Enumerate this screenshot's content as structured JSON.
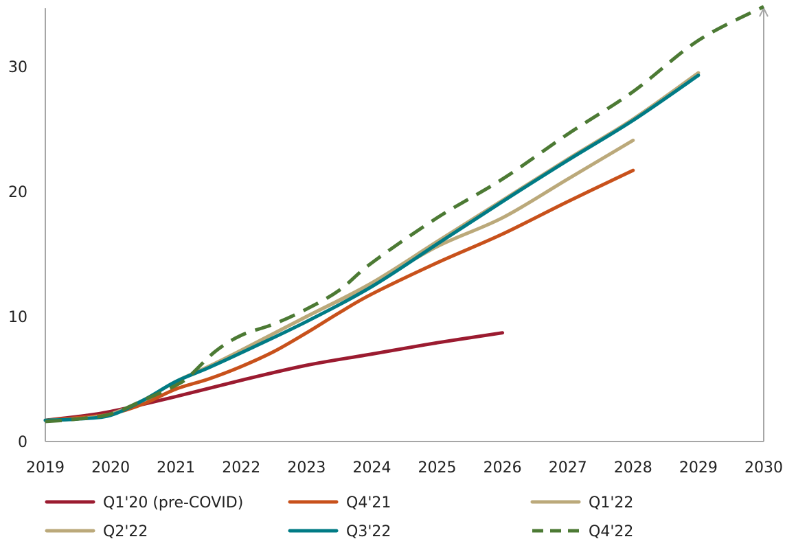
{
  "chart_data": {
    "type": "line",
    "title": "",
    "xlabel": "",
    "ylabel": "",
    "xlim": [
      2019,
      2030
    ],
    "ylim": [
      0,
      34
    ],
    "x_ticks": [
      "2019",
      "2020",
      "2021",
      "2022",
      "2023",
      "2024",
      "2025",
      "2026",
      "2027",
      "2028",
      "2029",
      "2030"
    ],
    "y_ticks": [
      "0",
      "10",
      "20",
      "30"
    ],
    "grid": false,
    "legend_position": "bottom",
    "series": [
      {
        "name": "Q1'20 (pre-COVID)",
        "color": "#9b1b30",
        "dash": false,
        "points": [
          [
            2019,
            1.7
          ],
          [
            2019.5,
            2.0
          ],
          [
            2020,
            2.4
          ],
          [
            2021,
            3.6
          ],
          [
            2022,
            4.9
          ],
          [
            2023,
            6.1
          ],
          [
            2024,
            7.0
          ],
          [
            2025,
            7.9
          ],
          [
            2026,
            8.7
          ]
        ]
      },
      {
        "name": "Q4'21",
        "color": "#c8511b",
        "dash": false,
        "points": [
          [
            2019,
            1.7
          ],
          [
            2019.5,
            1.9
          ],
          [
            2020,
            2.2
          ],
          [
            2020.5,
            3.0
          ],
          [
            2021,
            4.2
          ],
          [
            2021.5,
            5.0
          ],
          [
            2022,
            6.0
          ],
          [
            2022.5,
            7.2
          ],
          [
            2023,
            8.7
          ],
          [
            2023.5,
            10.3
          ],
          [
            2024,
            11.8
          ],
          [
            2025,
            14.3
          ],
          [
            2026,
            16.6
          ],
          [
            2027,
            19.2
          ],
          [
            2028,
            21.7
          ]
        ]
      },
      {
        "name": "Q1'22",
        "color": "#bba97a",
        "dash": false,
        "points": [
          [
            2019,
            1.7
          ],
          [
            2019.5,
            1.8
          ],
          [
            2020,
            2.2
          ],
          [
            2020.5,
            3.3
          ],
          [
            2021,
            4.8
          ],
          [
            2021.5,
            6.0
          ],
          [
            2022,
            7.3
          ],
          [
            2023,
            10.0
          ],
          [
            2024,
            12.7
          ],
          [
            2025,
            16.0
          ],
          [
            2026,
            19.3
          ],
          [
            2027,
            22.6
          ],
          [
            2028,
            25.8
          ],
          [
            2029,
            29.5
          ]
        ]
      },
      {
        "name": "Q2'22",
        "color": "#bba97a",
        "dash": false,
        "points": [
          [
            2019,
            1.7
          ],
          [
            2019.5,
            1.8
          ],
          [
            2020,
            2.2
          ],
          [
            2020.5,
            3.3
          ],
          [
            2021,
            4.8
          ],
          [
            2021.5,
            6.0
          ],
          [
            2022,
            7.3
          ],
          [
            2023,
            10.0
          ],
          [
            2024,
            12.6
          ],
          [
            2025,
            15.6
          ],
          [
            2026,
            17.9
          ],
          [
            2027,
            21.0
          ],
          [
            2028,
            24.1
          ]
        ]
      },
      {
        "name": "Q3'22",
        "color": "#007b85",
        "dash": false,
        "points": [
          [
            2019,
            1.7
          ],
          [
            2019.5,
            1.8
          ],
          [
            2020,
            2.1
          ],
          [
            2020.5,
            3.3
          ],
          [
            2021,
            4.8
          ],
          [
            2021.5,
            5.9
          ],
          [
            2022,
            7.1
          ],
          [
            2023,
            9.6
          ],
          [
            2024,
            12.4
          ],
          [
            2025,
            15.8
          ],
          [
            2026,
            19.2
          ],
          [
            2027,
            22.5
          ],
          [
            2028,
            25.7
          ],
          [
            2029,
            29.3
          ]
        ]
      },
      {
        "name": "Q4'22",
        "color": "#4c7a34",
        "dash": true,
        "points": [
          [
            2019,
            1.6
          ],
          [
            2019.5,
            1.8
          ],
          [
            2020,
            2.2
          ],
          [
            2020.5,
            3.3
          ],
          [
            2021,
            4.5
          ],
          [
            2021.2,
            5.2
          ],
          [
            2021.6,
            7.2
          ],
          [
            2022,
            8.5
          ],
          [
            2022.5,
            9.4
          ],
          [
            2023,
            10.6
          ],
          [
            2023.5,
            12.1
          ],
          [
            2024,
            14.3
          ],
          [
            2025,
            17.9
          ],
          [
            2026,
            21.0
          ],
          [
            2027,
            24.6
          ],
          [
            2028,
            28.0
          ],
          [
            2029,
            32.1
          ],
          [
            2030,
            34.8
          ]
        ]
      }
    ]
  }
}
